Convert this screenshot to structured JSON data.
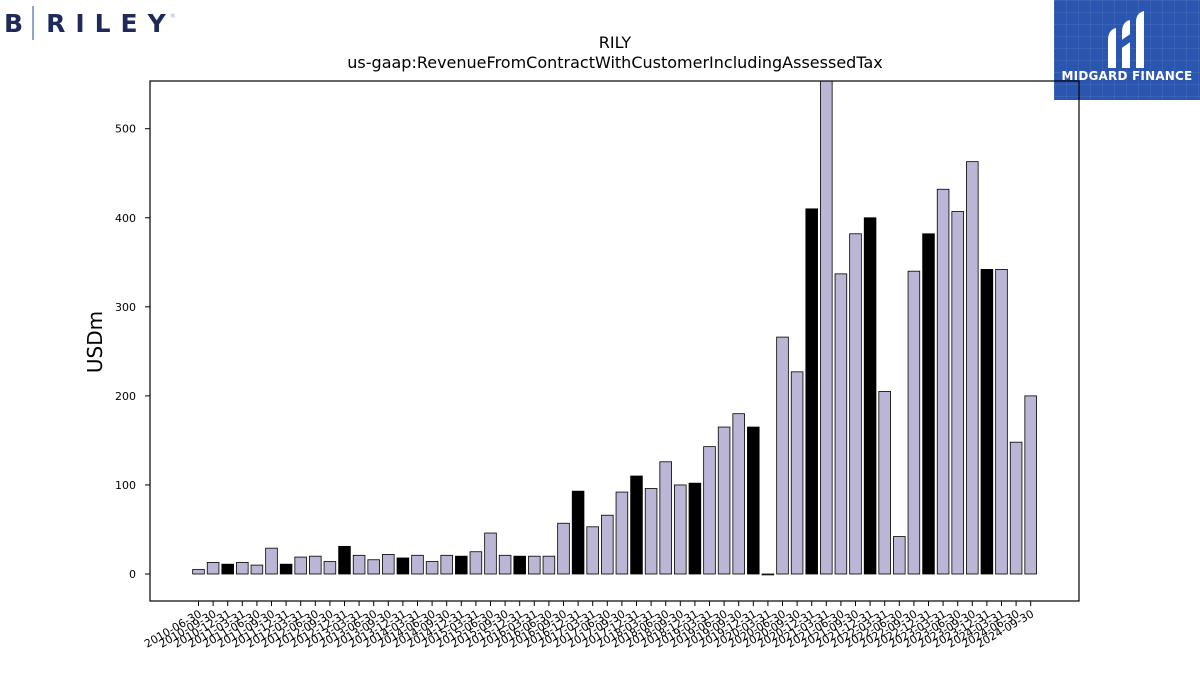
{
  "header": {
    "left_logo_b": "B",
    "left_logo_name": "RILEY",
    "left_logo_tm": "®",
    "right_logo_text": "MIDGARD FINANCE",
    "right_logo_icon": "midgard-logo-icon",
    "right_logo_color": "#2a56b0"
  },
  "chart_data": {
    "type": "bar",
    "title": "RILY",
    "subtitle": "us-gaap:RevenueFromContractWithCustomerIncludingAssessedTax",
    "xlabel": "",
    "ylabel": "USDm",
    "ylim": [
      -30,
      555
    ],
    "yticks": [
      0,
      100,
      200,
      300,
      400,
      500
    ],
    "grid": false,
    "bar_colors": {
      "quarter": "#bbb5d6",
      "year_end": "#000000"
    },
    "categories": [
      "2010-06-30",
      "2010-09-30",
      "2010-12-31",
      "2011-03-31",
      "2011-06-30",
      "2011-09-30",
      "2011-12-31",
      "2012-03-31",
      "2012-06-30",
      "2012-09-30",
      "2012-12-31",
      "2013-03-31",
      "2013-06-30",
      "2013-09-30",
      "2013-12-31",
      "2014-03-31",
      "2014-06-30",
      "2014-09-30",
      "2014-12-31",
      "2015-03-31",
      "2015-06-30",
      "2015-09-30",
      "2015-12-31",
      "2016-03-31",
      "2016-06-30",
      "2016-09-30",
      "2016-12-31",
      "2017-03-31",
      "2017-06-30",
      "2017-09-30",
      "2017-12-31",
      "2018-03-31",
      "2018-06-30",
      "2018-09-30",
      "2018-12-31",
      "2019-03-31",
      "2019-06-30",
      "2019-09-30",
      "2019-12-31",
      "2020-03-31",
      "2020-06-30",
      "2020-09-30",
      "2020-12-31",
      "2021-03-31",
      "2021-06-30",
      "2021-09-30",
      "2021-12-31",
      "2022-03-31",
      "2022-06-30",
      "2022-09-30",
      "2022-12-31",
      "2023-03-31",
      "2023-06-30",
      "2023-09-30",
      "2023-12-31",
      "2024-03-31",
      "2024-06-30",
      "2024-09-30"
    ],
    "values": [
      5,
      13,
      11,
      13,
      10,
      29,
      11,
      19,
      20,
      14,
      31,
      21,
      16,
      22,
      18,
      21,
      14,
      21,
      20,
      25,
      46,
      21,
      20,
      20,
      20,
      57,
      93,
      53,
      66,
      92,
      110,
      96,
      126,
      100,
      102,
      143,
      165,
      180,
      165,
      -1,
      266,
      227,
      410,
      560,
      337,
      382,
      400,
      205,
      42,
      340,
      382,
      432,
      407,
      463,
      342,
      342,
      148,
      200
    ],
    "is_year_end": [
      false,
      false,
      true,
      false,
      false,
      false,
      true,
      false,
      false,
      false,
      true,
      false,
      false,
      false,
      true,
      false,
      false,
      false,
      true,
      false,
      false,
      false,
      true,
      false,
      false,
      false,
      true,
      false,
      false,
      false,
      true,
      false,
      false,
      false,
      true,
      false,
      false,
      false,
      true,
      false,
      false,
      false,
      true,
      false,
      false,
      false,
      true,
      false,
      false,
      false,
      true,
      false,
      false,
      false,
      true,
      false,
      false,
      false
    ]
  }
}
